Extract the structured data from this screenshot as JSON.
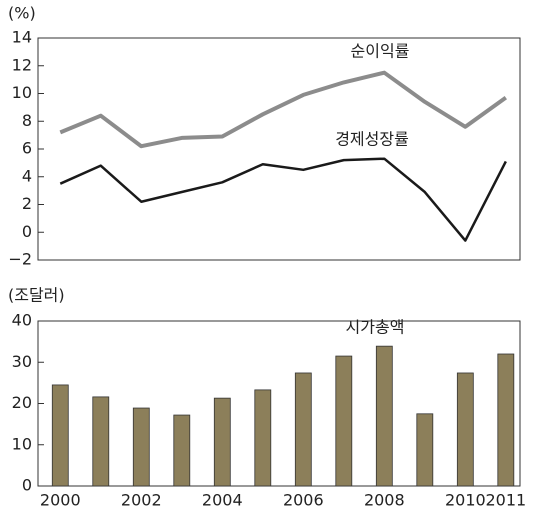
{
  "chart_data": [
    {
      "type": "line",
      "ylabel": "(%)",
      "x": [
        2000,
        2001,
        2002,
        2003,
        2004,
        2005,
        2006,
        2007,
        2008,
        2009,
        2010,
        2011
      ],
      "xlim": [
        1999.45,
        2011.35
      ],
      "ylim": [
        -2,
        14
      ],
      "yticks": [
        {
          "value": -2,
          "label": "−2"
        },
        0,
        2,
        4,
        6,
        8,
        10,
        12,
        14
      ],
      "series": [
        {
          "name": "순이익률",
          "color": "#8c8c8c",
          "values": [
            7.2,
            8.4,
            6.2,
            6.8,
            6.9,
            8.5,
            9.9,
            10.8,
            11.5,
            9.4,
            7.6,
            9.7
          ]
        },
        {
          "name": "경제성장률",
          "color": "#1a1a1a",
          "values": [
            3.5,
            4.8,
            2.2,
            2.9,
            3.6,
            4.9,
            4.5,
            5.2,
            5.3,
            2.9,
            -0.6,
            5.1
          ]
        }
      ]
    },
    {
      "type": "bar",
      "ylabel": "(조달러)",
      "x": [
        2000,
        2001,
        2002,
        2003,
        2004,
        2005,
        2006,
        2007,
        2008,
        2009,
        2010,
        2011
      ],
      "xlim": [
        1999.45,
        2011.35
      ],
      "xticks": [
        2000,
        2002,
        2004,
        2006,
        2008,
        2010,
        2011
      ],
      "ylim": [
        0,
        40
      ],
      "yticks": [
        0,
        10,
        20,
        30,
        40
      ],
      "series": [
        {
          "name": "시가총액",
          "color": "#8c7f5a",
          "values": [
            24.5,
            21.6,
            18.9,
            17.2,
            21.3,
            23.3,
            27.4,
            31.5,
            33.9,
            17.5,
            27.4,
            32.0
          ]
        }
      ]
    }
  ]
}
